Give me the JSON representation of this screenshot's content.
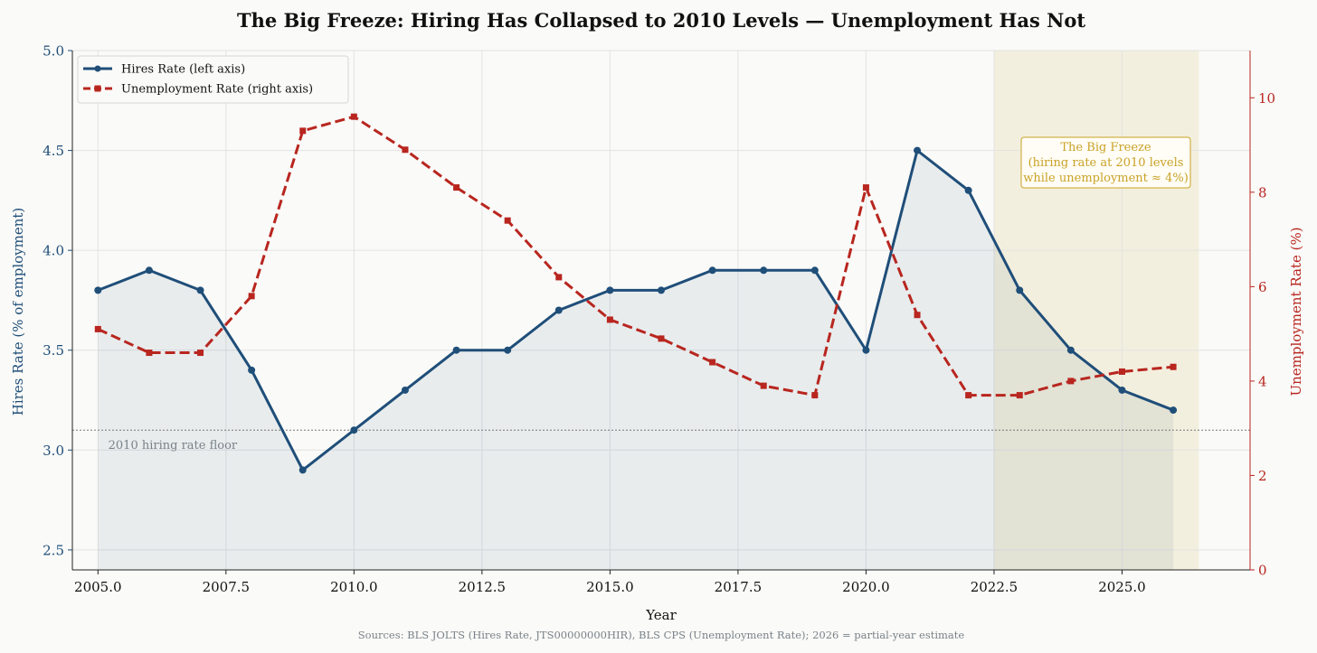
{
  "chart_data": {
    "type": "line",
    "title": "The Big Freeze: Hiring Has Collapsed to 2010 Levels — Unemployment Has Not",
    "xlabel": "Year",
    "ylabel_left": "Hires Rate (% of employment)",
    "ylabel_right": "Unemployment Rate (%)",
    "source": "Sources: BLS JOLTS (Hires Rate, JTS00000000HIR), BLS CPS (Unemployment Rate); 2026 = partial-year estimate",
    "x": [
      2005,
      2006,
      2007,
      2008,
      2009,
      2010,
      2011,
      2012,
      2013,
      2014,
      2015,
      2016,
      2017,
      2018,
      2019,
      2020,
      2021,
      2022,
      2023,
      2024,
      2025,
      2026
    ],
    "xlim": [
      2004.5,
      2027.5
    ],
    "ylim_left": [
      2.4,
      5.0
    ],
    "ylim_right": [
      0,
      11
    ],
    "x_ticks": [
      "2005.0",
      "2007.5",
      "2010.0",
      "2012.5",
      "2015.0",
      "2017.5",
      "2020.0",
      "2022.5",
      "2025.0"
    ],
    "x_tick_values": [
      2005,
      2007.5,
      2010,
      2012.5,
      2015,
      2017.5,
      2020,
      2022.5,
      2025
    ],
    "y_left_ticks": [
      "2.5",
      "3.0",
      "3.5",
      "4.0",
      "4.5",
      "5.0"
    ],
    "y_left_tick_values": [
      2.5,
      3.0,
      3.5,
      4.0,
      4.5,
      5.0
    ],
    "y_right_ticks": [
      "0",
      "2",
      "4",
      "6",
      "8",
      "10"
    ],
    "y_right_tick_values": [
      0,
      2,
      4,
      6,
      8,
      10
    ],
    "grid": true,
    "legend_position": "top-left",
    "series": [
      {
        "name": "Hires Rate (left axis)",
        "axis": "left",
        "color": "#1f4e79",
        "style": "solid",
        "marker": "circle",
        "values": [
          3.8,
          3.9,
          3.8,
          3.4,
          2.9,
          3.1,
          3.3,
          3.5,
          3.5,
          3.7,
          3.8,
          3.8,
          3.9,
          3.9,
          3.9,
          3.5,
          4.5,
          4.3,
          3.8,
          3.5,
          3.3,
          3.2
        ]
      },
      {
        "name": "Unemployment Rate (right axis)",
        "axis": "right",
        "color": "#b8261f",
        "style": "dashed",
        "marker": "square",
        "values": [
          5.1,
          4.6,
          4.6,
          5.8,
          9.3,
          9.6,
          8.9,
          8.1,
          7.4,
          6.2,
          5.3,
          4.9,
          4.4,
          3.9,
          3.7,
          8.1,
          5.4,
          3.7,
          3.7,
          4.0,
          4.2,
          4.3
        ]
      }
    ],
    "reference_line": {
      "axis": "left",
      "value": 3.1,
      "label": "2010 hiring rate floor"
    },
    "highlight_region": {
      "x_start": 2022.5,
      "x_end": 2026.5,
      "color": "#c9a227",
      "annotation": [
        "The Big Freeze",
        "(hiring rate at 2010 levels",
        "while unemployment ≈ 4%)"
      ]
    }
  }
}
